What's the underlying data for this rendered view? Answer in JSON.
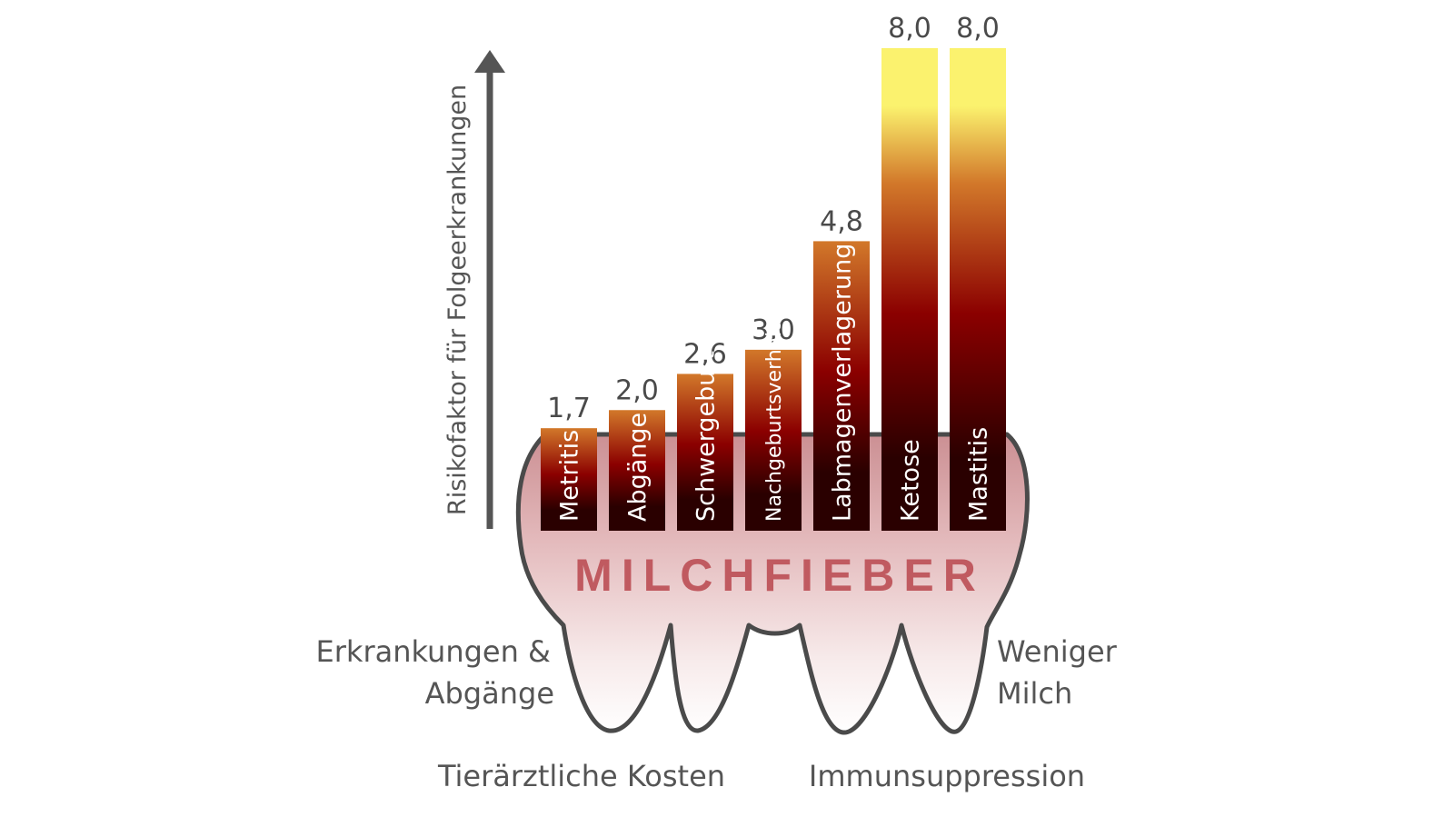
{
  "chart_data": {
    "type": "bar",
    "ylabel": "Risikofaktor für Folgeerkrankungen",
    "categories": [
      "Metritis",
      "Abgänge",
      "Schwergeburt",
      "Nachgeburtsverhaltung",
      "Labmagenverlagerung",
      "Ketose",
      "Mastitis"
    ],
    "values": [
      1.7,
      2.0,
      2.6,
      3.0,
      4.8,
      8.0,
      8.0
    ],
    "value_labels": [
      "1,7",
      "2,0",
      "2,6",
      "3,0",
      "4,8",
      "8,0",
      "8,0"
    ],
    "ylim": [
      0,
      8
    ],
    "grid": false
  },
  "tooth": {
    "title": "MILCHFIEBER",
    "labels": {
      "left_1": "Erkrankungen &",
      "left_2": "Abgänge",
      "right_1": "Weniger",
      "right_2": "Milch",
      "bottom_left": "Tierärztliche Kosten",
      "bottom_right": "Immunsuppression"
    }
  },
  "colors": {
    "bar_bottom": "#2a0000",
    "bar_mid": "#8b0000",
    "bar_top_orange": "#d2782a",
    "bar_top_yellow": "#fbf26e",
    "tooth_outline": "#4a4a4a",
    "tooth_fill": "#c98a8e",
    "arrow": "#555555",
    "title": "#c05a60"
  }
}
